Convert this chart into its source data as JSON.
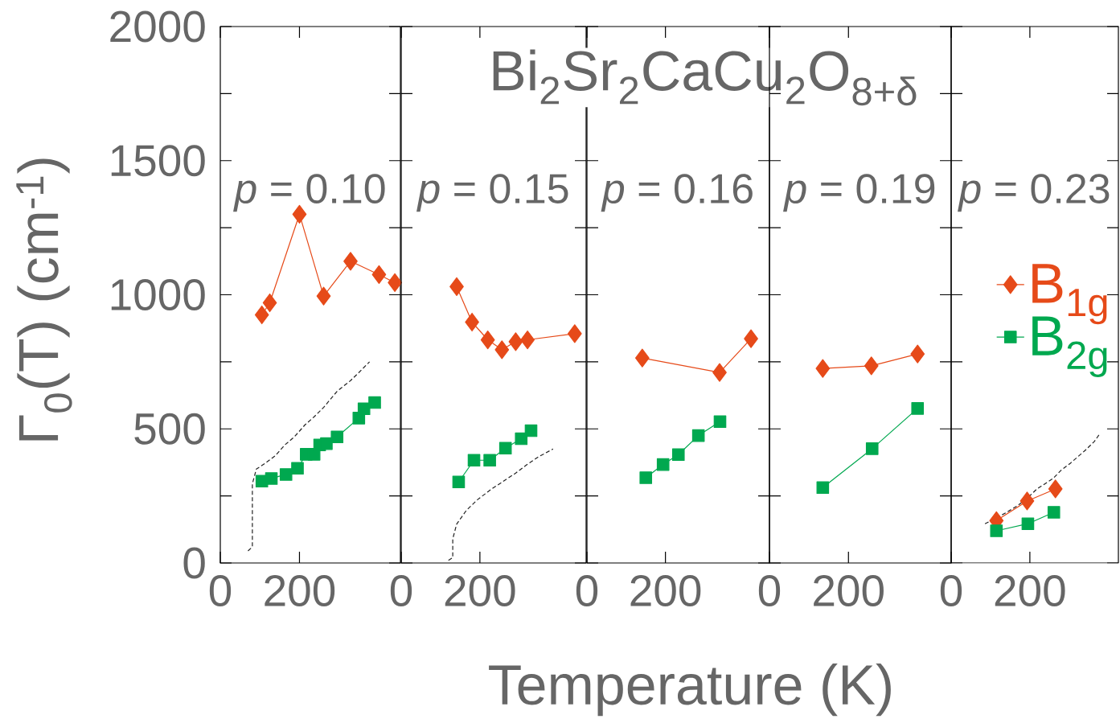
{
  "chart_data": [
    {
      "type": "line",
      "ylabel": "Γ$_{0}$(T)   (cm$^{-1}$)",
      "annotations": [
        "*p* = 0.10"
      ],
      "xlim": [
        0,
        455
      ],
      "ylim": [
        0,
        2000
      ],
      "xticks": [
        0,
        200
      ],
      "yticks": [
        0,
        500,
        1000,
        1500,
        2000,
        {
          "value": 250,
          "label": null
        },
        {
          "value": 750,
          "label": null
        },
        {
          "value": 1250,
          "label": null
        },
        {
          "value": 1750,
          "label": null
        }
      ],
      "series": [
        {
          "color": "#e64a19",
          "marker": "diamond",
          "x": [
            105,
            125,
            200,
            261,
            329,
            401,
            441
          ],
          "values": [
            925,
            970,
            1300,
            995,
            1125,
            1075,
            1045
          ]
        },
        {
          "color": "#00a84f",
          "marker": "square",
          "x": [
            105,
            129,
            166,
            195,
            217,
            237,
            251,
            268,
            295,
            350,
            363,
            390
          ],
          "values": [
            305,
            315,
            330,
            353,
            405,
            405,
            440,
            445,
            470,
            540,
            575,
            598
          ]
        },
        {
          "color": "#222222",
          "marker": "none",
          "line_style": "dashed",
          "x": [
            70,
            81,
            81,
            91,
            112,
            139,
            163,
            187,
            214,
            237,
            261,
            295,
            329,
            350,
            377
          ],
          "values": [
            45,
            60,
            295,
            350,
            370,
            400,
            440,
            470,
            515,
            545,
            580,
            640,
            680,
            710,
            750
          ]
        }
      ]
    },
    {
      "type": "line",
      "annotations": [
        "*p* = 0.15"
      ],
      "tick_labels": "x",
      "xlim": [
        0,
        470
      ],
      "ylim": [
        0,
        2000
      ],
      "xticks": [
        0,
        200
      ],
      "yticks": [
        0,
        500,
        1000,
        1500,
        2000,
        {
          "value": 250,
          "label": null
        },
        {
          "value": 750,
          "label": null
        },
        {
          "value": 1250,
          "label": null
        },
        {
          "value": 1750,
          "label": null
        }
      ],
      "series": [
        {
          "color": "#e64a19",
          "marker": "diamond",
          "x": [
            141,
            180,
            220,
            256,
            291,
            321,
            441
          ],
          "values": [
            1030,
            898,
            832,
            795,
            825,
            832,
            855
          ]
        },
        {
          "color": "#00a84f",
          "marker": "square",
          "x": [
            146,
            185,
            225,
            265,
            305,
            330
          ],
          "values": [
            302,
            383,
            383,
            428,
            463,
            493
          ]
        },
        {
          "color": "#222222",
          "marker": "none",
          "line_style": "dashed",
          "x": [
            120,
            131,
            131,
            141,
            165,
            193,
            229,
            260,
            291,
            318,
            348,
            386
          ],
          "values": [
            10,
            20,
            90,
            145,
            195,
            235,
            275,
            305,
            335,
            365,
            395,
            425
          ]
        }
      ]
    },
    {
      "type": "line",
      "title": "Bi$_{2}$Sr$_{2}$CaCu$_{2}$O$_{8+δ}$",
      "xlabel": "Temperature (K)",
      "annotations": [
        "*p* = 0.16"
      ],
      "tick_labels": "x",
      "xlim": [
        0,
        465
      ],
      "ylim": [
        0,
        2000
      ],
      "xticks": [
        0,
        200
      ],
      "yticks": [
        0,
        500,
        1000,
        1500,
        2000,
        {
          "value": 250,
          "label": null
        },
        {
          "value": 750,
          "label": null
        },
        {
          "value": 1250,
          "label": null
        },
        {
          "value": 1750,
          "label": null
        }
      ],
      "series": [
        {
          "color": "#e64a19",
          "marker": "diamond",
          "x": [
            141,
            338,
            418
          ],
          "values": [
            764,
            710,
            836
          ]
        },
        {
          "color": "#00a84f",
          "marker": "square",
          "x": [
            150,
            194,
            233,
            284,
            339
          ],
          "values": [
            318,
            367,
            404,
            475,
            527
          ]
        }
      ]
    },
    {
      "type": "line",
      "annotations": [
        "*p* = 0.19"
      ],
      "tick_labels": "x",
      "xlim": [
        0,
        460
      ],
      "ylim": [
        0,
        2000
      ],
      "xticks": [
        0,
        200
      ],
      "yticks": [
        0,
        500,
        1000,
        1500,
        2000,
        {
          "value": 250,
          "label": null
        },
        {
          "value": 750,
          "label": null
        },
        {
          "value": 1250,
          "label": null
        },
        {
          "value": 1750,
          "label": null
        }
      ],
      "series": [
        {
          "color": "#e64a19",
          "marker": "diamond",
          "x": [
            135,
            258,
            375
          ],
          "values": [
            725,
            735,
            779
          ]
        },
        {
          "color": "#00a84f",
          "marker": "square",
          "x": [
            135,
            260,
            375
          ],
          "values": [
            281,
            426,
            576
          ]
        }
      ]
    },
    {
      "type": "line",
      "annotations": [
        "*p* = 0.23"
      ],
      "tick_labels": "x",
      "legend": "right",
      "xlim": [
        0,
        425
      ],
      "ylim": [
        0,
        2000
      ],
      "xticks": [
        0,
        200
      ],
      "yticks": [
        0,
        500,
        1000,
        1500,
        2000,
        {
          "value": 250,
          "label": null
        },
        {
          "value": 750,
          "label": null
        },
        {
          "value": 1250,
          "label": null
        },
        {
          "value": 1750,
          "label": null
        }
      ],
      "series": [
        {
          "name": "B$_{1g}$",
          "color": "#e64a19",
          "marker": "diamond",
          "x": [
            115,
            193,
            265
          ],
          "values": [
            158,
            231,
            276
          ]
        },
        {
          "name": "B$_{2g}$",
          "color": "#00a84f",
          "marker": "square",
          "x": [
            115,
            195,
            261
          ],
          "values": [
            120,
            146,
            189
          ]
        },
        {
          "color": "#222222",
          "marker": "none",
          "line_style": "dashed",
          "x": [
            86,
            115,
            139,
            167,
            193,
            218,
            259,
            279,
            303,
            340,
            364,
            376
          ],
          "values": [
            146,
            null,
            187,
            212,
            241,
            276,
            315,
            345,
            372,
            419,
            453,
            478
          ]
        }
      ]
    }
  ]
}
